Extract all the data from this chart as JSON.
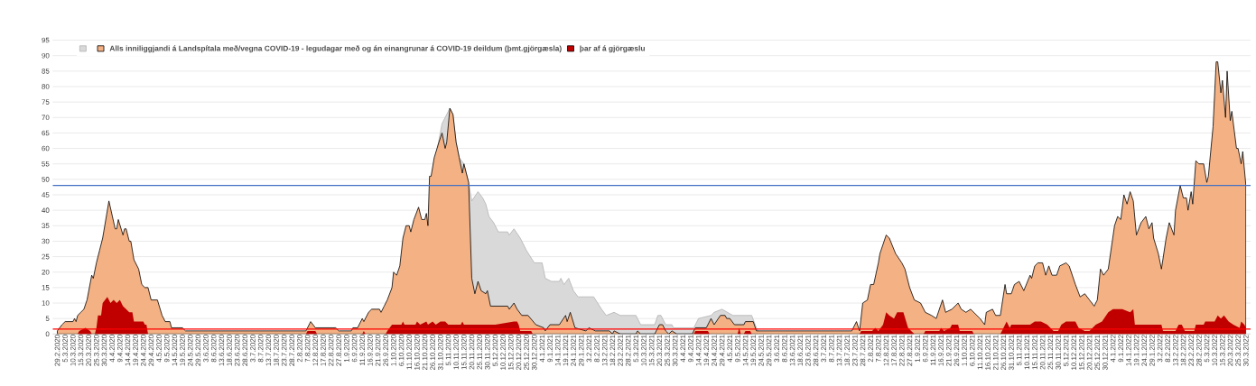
{
  "chart_data": {
    "type": "area",
    "grid": "y",
    "legend": "top left",
    "xlim": [
      "2020-02-26",
      "2022-04-02"
    ],
    "ylim": [
      0,
      95
    ],
    "yticks": [
      0,
      5,
      10,
      15,
      20,
      25,
      30,
      35,
      40,
      45,
      50,
      55,
      60,
      65,
      70,
      75,
      80,
      85,
      90,
      95
    ],
    "xticks": [
      {
        "value": "2020-02-29",
        "label": "29.2.2020"
      },
      {
        "value": "2020-03-05",
        "label": "5.3.2020"
      },
      {
        "value": "2020-03-10",
        "label": "10.3.2020"
      },
      {
        "value": "2020-03-15",
        "label": "15.3.2020"
      },
      {
        "value": "2020-03-20",
        "label": "20.3.2020"
      },
      {
        "value": "2020-03-25",
        "label": "25.3.2020"
      },
      {
        "value": "2020-03-30",
        "label": "30.3.2020"
      },
      {
        "value": "2020-04-04",
        "label": "4.4.2020"
      },
      {
        "value": "2020-04-09",
        "label": "9.4.2020"
      },
      {
        "value": "2020-04-14",
        "label": "14.4.2020"
      },
      {
        "value": "2020-04-19",
        "label": "19.4.2020"
      },
      {
        "value": "2020-04-24",
        "label": "24.4.2020"
      },
      {
        "value": "2020-04-29",
        "label": "29.4.2020"
      },
      {
        "value": "2020-05-04",
        "label": "4.5.2020"
      },
      {
        "value": "2020-05-09",
        "label": "9.5.2020"
      },
      {
        "value": "2020-05-14",
        "label": "14.5.2020"
      },
      {
        "value": "2020-05-19",
        "label": "19.5.2020"
      },
      {
        "value": "2020-05-24",
        "label": "24.5.2020"
      },
      {
        "value": "2020-05-29",
        "label": "29.5.2020"
      },
      {
        "value": "2020-06-03",
        "label": "3.6.2020"
      },
      {
        "value": "2020-06-08",
        "label": "8.6.2020"
      },
      {
        "value": "2020-06-13",
        "label": "13.6.2020"
      },
      {
        "value": "2020-06-18",
        "label": "18.6.2020"
      },
      {
        "value": "2020-06-23",
        "label": "23.6.2020"
      },
      {
        "value": "2020-06-28",
        "label": "28.6.2020"
      },
      {
        "value": "2020-07-03",
        "label": "3.7.2020"
      },
      {
        "value": "2020-07-08",
        "label": "8.7.2020"
      },
      {
        "value": "2020-07-13",
        "label": "13.7.2020"
      },
      {
        "value": "2020-07-18",
        "label": "18.7.2020"
      },
      {
        "value": "2020-07-23",
        "label": "23.7.2020"
      },
      {
        "value": "2020-07-28",
        "label": "28.7.2020"
      },
      {
        "value": "2020-08-02",
        "label": "2.8.2020"
      },
      {
        "value": "2020-08-07",
        "label": "7.8.2020"
      },
      {
        "value": "2020-08-12",
        "label": "12.8.2020"
      },
      {
        "value": "2020-08-17",
        "label": "17.8.2020"
      },
      {
        "value": "2020-08-22",
        "label": "22.8.2020"
      },
      {
        "value": "2020-08-27",
        "label": "27.8.2020"
      },
      {
        "value": "2020-09-01",
        "label": "1.9.2020"
      },
      {
        "value": "2020-09-06",
        "label": "6.9.2020"
      },
      {
        "value": "2020-09-11",
        "label": "11.9.2020"
      },
      {
        "value": "2020-09-16",
        "label": "16.9.2020"
      },
      {
        "value": "2020-09-21",
        "label": "21.9.2020"
      },
      {
        "value": "2020-09-26",
        "label": "26.9.2020"
      },
      {
        "value": "2020-10-01",
        "label": "1.10.2020"
      },
      {
        "value": "2020-10-06",
        "label": "6.10.2020"
      },
      {
        "value": "2020-10-11",
        "label": "11.10.2020"
      },
      {
        "value": "2020-10-16",
        "label": "16.10.2020"
      },
      {
        "value": "2020-10-21",
        "label": "21.10.2020"
      },
      {
        "value": "2020-10-26",
        "label": "26.10.2020"
      },
      {
        "value": "2020-10-31",
        "label": "31.10.2020"
      },
      {
        "value": "2020-11-05",
        "label": "5.11.2020"
      },
      {
        "value": "2020-11-10",
        "label": "10.11.2020"
      },
      {
        "value": "2020-11-15",
        "label": "15.11.2020"
      },
      {
        "value": "2020-11-20",
        "label": "20.11.2020"
      },
      {
        "value": "2020-11-25",
        "label": "25.11.2020"
      },
      {
        "value": "2020-11-30",
        "label": "30.11.2020"
      },
      {
        "value": "2020-12-05",
        "label": "5.12.2020"
      },
      {
        "value": "2020-12-10",
        "label": "10.12.2020"
      },
      {
        "value": "2020-12-15",
        "label": "15.12.2020"
      },
      {
        "value": "2020-12-20",
        "label": "20.12.2020"
      },
      {
        "value": "2020-12-25",
        "label": "25.12.2020"
      },
      {
        "value": "2020-12-30",
        "label": "30.12.2020"
      },
      {
        "value": "2021-01-04",
        "label": "4.1.2021"
      },
      {
        "value": "2021-01-09",
        "label": "9.1.2021"
      },
      {
        "value": "2021-01-14",
        "label": "14.1.2021"
      },
      {
        "value": "2021-01-19",
        "label": "19.1.2021"
      },
      {
        "value": "2021-01-24",
        "label": "24.1.2021"
      },
      {
        "value": "2021-01-29",
        "label": "29.1.2021"
      },
      {
        "value": "2021-02-03",
        "label": "3.2.2021"
      },
      {
        "value": "2021-02-08",
        "label": "8.2.2021"
      },
      {
        "value": "2021-02-13",
        "label": "13.2.2021"
      },
      {
        "value": "2021-02-18",
        "label": "18.2.2021"
      },
      {
        "value": "2021-02-23",
        "label": "23.2.2021"
      },
      {
        "value": "2021-02-28",
        "label": "28.2.2021"
      },
      {
        "value": "2021-03-05",
        "label": "5.3.2021"
      },
      {
        "value": "2021-03-10",
        "label": "10.3.2021"
      },
      {
        "value": "2021-03-15",
        "label": "15.3.2021"
      },
      {
        "value": "2021-03-20",
        "label": "20.3.2021"
      },
      {
        "value": "2021-03-25",
        "label": "25.3.2021"
      },
      {
        "value": "2021-03-30",
        "label": "30.3.2021"
      },
      {
        "value": "2021-04-04",
        "label": "4.4.2021"
      },
      {
        "value": "2021-04-09",
        "label": "9.4.2021"
      },
      {
        "value": "2021-04-14",
        "label": "14.4.2021"
      },
      {
        "value": "2021-04-19",
        "label": "19.4.2021"
      },
      {
        "value": "2021-04-24",
        "label": "24.4.2021"
      },
      {
        "value": "2021-04-29",
        "label": "29.4.2021"
      },
      {
        "value": "2021-05-04",
        "label": "4.5.2021"
      },
      {
        "value": "2021-05-09",
        "label": "9.5.2021"
      },
      {
        "value": "2021-05-14",
        "label": "14.5.2021"
      },
      {
        "value": "2021-05-19",
        "label": "19.5.2021"
      },
      {
        "value": "2021-05-24",
        "label": "24.5.2021"
      },
      {
        "value": "2021-05-29",
        "label": "29.5.2021"
      },
      {
        "value": "2021-06-03",
        "label": "3.6.2021"
      },
      {
        "value": "2021-06-08",
        "label": "8.6.2021"
      },
      {
        "value": "2021-06-13",
        "label": "13.6.2021"
      },
      {
        "value": "2021-06-18",
        "label": "18.6.2021"
      },
      {
        "value": "2021-06-23",
        "label": "23.6.2021"
      },
      {
        "value": "2021-06-28",
        "label": "28.6.2021"
      },
      {
        "value": "2021-07-03",
        "label": "3.7.2021"
      },
      {
        "value": "2021-07-08",
        "label": "8.7.2021"
      },
      {
        "value": "2021-07-13",
        "label": "13.7.2021"
      },
      {
        "value": "2021-07-18",
        "label": "18.7.2021"
      },
      {
        "value": "2021-07-23",
        "label": "23.7.2021"
      },
      {
        "value": "2021-07-28",
        "label": "28.7.2021"
      },
      {
        "value": "2021-08-02",
        "label": "2.8.2021"
      },
      {
        "value": "2021-08-07",
        "label": "7.8.2021"
      },
      {
        "value": "2021-08-12",
        "label": "12.8.2021"
      },
      {
        "value": "2021-08-17",
        "label": "17.8.2021"
      },
      {
        "value": "2021-08-22",
        "label": "22.8.2021"
      },
      {
        "value": "2021-08-27",
        "label": "27.8.2021"
      },
      {
        "value": "2021-09-01",
        "label": "1.9.2021"
      },
      {
        "value": "2021-09-06",
        "label": "6.9.2021"
      },
      {
        "value": "2021-09-11",
        "label": "11.9.2021"
      },
      {
        "value": "2021-09-16",
        "label": "16.9.2021"
      },
      {
        "value": "2021-09-21",
        "label": "21.9.2021"
      },
      {
        "value": "2021-09-26",
        "label": "26.9.2021"
      },
      {
        "value": "2021-10-01",
        "label": "1.10.2021"
      },
      {
        "value": "2021-10-06",
        "label": "6.10.2021"
      },
      {
        "value": "2021-10-11",
        "label": "11.10.2021"
      },
      {
        "value": "2021-10-16",
        "label": "16.10.2021"
      },
      {
        "value": "2021-10-21",
        "label": "21.10.2021"
      },
      {
        "value": "2021-10-26",
        "label": "26.10.2021"
      },
      {
        "value": "2021-10-31",
        "label": "31.10.2021"
      },
      {
        "value": "2021-11-05",
        "label": "5.11.2021"
      },
      {
        "value": "2021-11-10",
        "label": "10.11.2021"
      },
      {
        "value": "2021-11-15",
        "label": "15.11.2021"
      },
      {
        "value": "2021-11-20",
        "label": "20.11.2021"
      },
      {
        "value": "2021-11-25",
        "label": "25.11.2021"
      },
      {
        "value": "2021-11-30",
        "label": "30.11.2021"
      },
      {
        "value": "2021-12-05",
        "label": "5.12.2021"
      },
      {
        "value": "2021-12-10",
        "label": "10.12.2021"
      },
      {
        "value": "2021-12-15",
        "label": "15.12.2021"
      },
      {
        "value": "2021-12-20",
        "label": "20.12.2021"
      },
      {
        "value": "2021-12-25",
        "label": "25.12.2021"
      },
      {
        "value": "2021-12-30",
        "label": "30.12.2021"
      },
      {
        "value": "2022-01-04",
        "label": "4.1.2022"
      },
      {
        "value": "2022-01-09",
        "label": "9.1.2022"
      },
      {
        "value": "2022-01-14",
        "label": "14.1.2022"
      },
      {
        "value": "2022-01-19",
        "label": "19.1.2022"
      },
      {
        "value": "2022-01-24",
        "label": "24.1.2022"
      },
      {
        "value": "2022-01-29",
        "label": "29.1.2022"
      },
      {
        "value": "2022-02-03",
        "label": "3.2.2022"
      },
      {
        "value": "2022-02-08",
        "label": "8.2.2022"
      },
      {
        "value": "2022-02-13",
        "label": "13.2.2022"
      },
      {
        "value": "2022-02-18",
        "label": "18.2.2022"
      },
      {
        "value": "2022-02-23",
        "label": "23.2.2022"
      },
      {
        "value": "2022-02-28",
        "label": "28.2.2022"
      },
      {
        "value": "2022-03-05",
        "label": "5.3.2022"
      },
      {
        "value": "2022-03-10",
        "label": "10.3.2022"
      },
      {
        "value": "2022-03-15",
        "label": "15.3.2022"
      },
      {
        "value": "2022-03-20",
        "label": "20.3.2022"
      },
      {
        "value": "2022-03-25",
        "label": "25.3.2022"
      },
      {
        "value": "2022-03-30",
        "label": "30.3.2022"
      }
    ],
    "series": [
      {
        "color": "#d9d9d9",
        "x": [
          "2020-10-29",
          "2020-11-01",
          "2020-11-03",
          "2020-11-06",
          "2020-11-08",
          "2020-11-10",
          "2020-11-12",
          "2020-11-14",
          "2020-11-15",
          "2020-11-18",
          "2020-11-20",
          "2020-11-24",
          "2020-11-27",
          "2020-11-29",
          "2020-12-01",
          "2020-12-04",
          "2020-12-07",
          "2020-12-13",
          "2020-12-14",
          "2020-12-17",
          "2020-12-21",
          "2020-12-25",
          "2020-12-30",
          "2021-01-04",
          "2021-01-06",
          "2021-01-10",
          "2021-01-15",
          "2021-01-16",
          "2021-01-18",
          "2021-01-21",
          "2021-01-24",
          "2021-01-27",
          "2021-02-06",
          "2021-02-11",
          "2021-02-14",
          "2021-02-19",
          "2021-02-23",
          "2021-03-05",
          "2021-03-08",
          "2021-03-17",
          "2021-03-19",
          "2021-03-21",
          "2021-03-24",
          "2021-03-28",
          "2021-03-29",
          "2021-04-11",
          "2021-04-14",
          "2021-04-22",
          "2021-04-24",
          "2021-04-29",
          "2021-05-06",
          "2021-05-13",
          "2021-05-18",
          "2021-05-21",
          "2021-05-22"
        ],
        "values": [
          60,
          68,
          null,
          73,
          71,
          62,
          57,
          null,
          55,
          49,
          43,
          46,
          44,
          42,
          38,
          36,
          33,
          33,
          32,
          34,
          31,
          27,
          23,
          23,
          18,
          17,
          17,
          18,
          16,
          18,
          14,
          12,
          12,
          8,
          6,
          7,
          6,
          6,
          3,
          3,
          6,
          6,
          3,
          3,
          2,
          2,
          5,
          6,
          7,
          8,
          6,
          6,
          6,
          2,
          1
        ]
      },
      {
        "name": "Alls inniliggjandi á Landspítala með/vegna COVID-19 - legudagar með og án einangrunar á COVID-19 deildum (þmt.gjörgæsla)",
        "color": "#f4b183",
        "x": [
          "2020-02-29",
          "2020-03-03",
          "2020-03-05",
          "2020-03-10",
          "2020-03-11",
          "2020-03-12",
          "2020-03-13",
          "2020-03-15",
          "2020-03-17",
          "2020-03-19",
          "2020-03-22",
          "2020-03-23",
          "2020-03-25",
          "2020-03-27",
          "2020-03-29",
          "2020-04-02",
          "2020-04-06",
          "2020-04-07",
          "2020-04-08",
          "2020-04-11",
          "2020-04-12",
          "2020-04-13",
          "2020-04-15",
          "2020-04-16",
          "2020-04-18",
          "2020-04-21",
          "2020-04-23",
          "2020-04-25",
          "2020-04-27",
          "2020-04-29",
          "2020-05-03",
          "2020-05-06",
          "2020-05-08",
          "2020-05-11",
          "2020-05-12",
          "2020-05-19",
          "2020-05-21",
          "2020-08-06",
          "2020-08-09",
          "2020-08-12",
          "2020-08-25",
          "2020-08-27",
          "2020-09-04",
          "2020-09-05",
          "2020-09-08",
          "2020-09-11",
          "2020-09-12",
          "2020-09-15",
          "2020-09-17",
          "2020-09-22",
          "2020-09-23",
          "2020-09-25",
          "2020-09-27",
          "2020-09-30",
          "2020-10-01",
          "2020-10-03",
          "2020-10-05",
          "2020-10-07",
          "2020-10-09",
          "2020-10-11",
          "2020-10-12",
          "2020-10-14",
          "2020-10-17",
          "2020-10-19",
          "2020-10-21",
          "2020-10-22",
          "2020-10-23",
          "2020-10-24",
          "2020-10-25",
          "2020-10-27",
          "2020-10-30",
          "2020-11-01",
          "2020-11-03",
          "2020-11-04",
          "2020-11-06",
          "2020-11-08",
          "2020-11-10",
          "2020-11-12",
          "2020-11-14",
          "2020-11-15",
          "2020-11-18",
          "2020-11-20",
          "2020-11-22",
          "2020-11-24",
          "2020-11-26",
          "2020-11-29",
          "2020-11-30",
          "2020-12-02",
          "2020-12-13",
          "2020-12-14",
          "2020-12-17",
          "2020-12-19",
          "2020-12-22",
          "2020-12-26",
          "2020-12-31",
          "2021-01-05",
          "2021-01-06",
          "2021-01-09",
          "2021-01-15",
          "2021-01-19",
          "2021-01-20",
          "2021-01-22",
          "2021-01-25",
          "2021-02-01",
          "2021-02-03",
          "2021-02-07",
          "2021-02-16",
          "2021-02-18",
          "2021-02-19",
          "2021-02-23",
          "2021-03-05",
          "2021-03-06",
          "2021-03-08",
          "2021-03-17",
          "2021-03-20",
          "2021-03-22",
          "2021-03-24",
          "2021-03-26",
          "2021-03-28",
          "2021-03-31",
          "2021-04-10",
          "2021-04-12",
          "2021-04-19",
          "2021-04-22",
          "2021-04-24",
          "2021-04-28",
          "2021-05-01",
          "2021-05-02",
          "2021-05-04",
          "2021-05-07",
          "2021-05-13",
          "2021-05-14",
          "2021-05-19",
          "2021-05-21",
          "2021-07-21",
          "2021-07-24",
          "2021-07-26",
          "2021-07-28",
          "2021-07-31",
          "2021-08-02",
          "2021-08-04",
          "2021-08-07",
          "2021-08-08",
          "2021-08-10",
          "2021-08-12",
          "2021-08-14",
          "2021-08-18",
          "2021-08-22",
          "2021-08-24",
          "2021-08-27",
          "2021-08-30",
          "2021-09-03",
          "2021-09-06",
          "2021-09-10",
          "2021-09-13",
          "2021-09-17",
          "2021-09-19",
          "2021-09-23",
          "2021-09-27",
          "2021-09-29",
          "2021-10-02",
          "2021-10-05",
          "2021-10-11",
          "2021-10-14",
          "2021-10-15",
          "2021-10-19",
          "2021-10-21",
          "2021-10-24",
          "2021-10-27",
          "2021-10-28",
          "2021-10-31",
          "2021-11-02",
          "2021-11-05",
          "2021-11-08",
          "2021-11-12",
          "2021-11-13",
          "2021-11-15",
          "2021-11-17",
          "2021-11-20",
          "2021-11-22",
          "2021-11-24",
          "2021-11-26",
          "2021-11-29",
          "2021-12-01",
          "2021-12-05",
          "2021-12-07",
          "2021-12-11",
          "2021-12-14",
          "2021-12-17",
          "2021-12-20",
          "2021-12-23",
          "2021-12-25",
          "2021-12-27",
          "2021-12-29",
          "2022-01-01",
          "2022-01-05",
          "2022-01-07",
          "2022-01-09",
          "2022-01-11",
          "2022-01-13",
          "2022-01-15",
          "2022-01-17",
          "2022-01-19",
          "2022-01-22",
          "2022-01-25",
          "2022-01-27",
          "2022-01-29",
          "2022-01-30",
          "2022-02-02",
          "2022-02-04",
          "2022-02-07",
          "2022-02-09",
          "2022-02-12",
          "2022-02-13",
          "2022-02-16",
          "2022-02-18",
          "2022-02-20",
          "2022-02-21",
          "2022-02-23",
          "2022-02-24",
          "2022-02-26",
          "2022-02-28",
          "2022-03-03",
          "2022-03-05",
          "2022-03-06",
          "2022-03-09",
          "2022-03-11",
          "2022-03-12",
          "2022-03-14",
          "2022-03-15",
          "2022-03-17",
          "2022-03-18",
          "2022-03-20",
          "2022-03-21",
          "2022-03-24",
          "2022-03-25",
          "2022-03-27",
          "2022-03-28",
          "2022-03-30"
        ],
        "values": [
          1,
          3,
          4,
          4,
          5,
          4,
          6,
          7,
          8,
          11,
          19,
          18,
          23,
          27,
          31,
          43,
          34,
          34,
          37,
          32,
          34,
          34,
          30,
          30,
          24,
          21,
          16,
          15,
          15,
          11,
          11,
          6,
          4,
          4,
          2,
          2,
          1,
          1,
          4,
          2,
          2,
          1,
          1,
          2,
          2,
          5,
          4,
          7,
          8,
          8,
          7,
          9,
          11,
          15,
          20,
          19,
          22,
          31,
          35,
          35,
          33,
          37,
          41,
          37,
          37,
          39,
          35,
          51,
          51,
          57,
          62,
          65,
          60,
          62,
          73,
          71,
          62,
          57,
          52,
          55,
          49,
          18,
          13,
          17,
          14,
          13,
          14,
          9,
          9,
          8,
          10,
          8,
          6,
          6,
          3,
          2,
          1,
          3,
          3,
          6,
          4,
          7,
          2,
          1,
          2,
          1,
          1,
          0,
          1,
          0,
          0,
          1,
          0,
          0,
          3,
          3,
          1,
          0,
          1,
          0,
          0,
          2,
          2,
          5,
          3,
          6,
          6,
          5,
          5,
          3,
          3,
          4,
          4,
          1,
          1,
          4,
          1,
          10,
          11,
          16,
          16,
          23,
          26,
          29,
          32,
          31,
          26,
          23,
          21,
          15,
          11,
          10,
          7,
          6,
          5,
          11,
          7,
          8,
          10,
          8,
          7,
          8,
          5,
          3,
          7,
          8,
          6,
          6,
          16,
          13,
          13,
          16,
          17,
          14,
          19,
          18,
          22,
          23,
          23,
          19,
          22,
          19,
          19,
          22,
          23,
          22,
          16,
          12,
          13,
          11,
          9,
          11,
          21,
          19,
          21,
          35,
          38,
          37,
          45,
          42,
          46,
          43,
          32,
          36,
          38,
          34,
          36,
          31,
          26,
          21,
          31,
          36,
          32,
          40,
          48,
          44,
          44,
          40,
          46,
          42,
          56,
          55,
          55,
          49,
          51,
          67,
          88,
          88,
          78,
          82,
          70,
          85,
          69,
          72,
          60,
          60,
          55,
          59,
          48
        ]
      },
      {
        "name": "þar af á gjörgæslu",
        "color": "#c00000",
        "x": [
          "2020-03-13",
          "2020-03-14",
          "2020-03-18",
          "2020-03-21",
          "2020-03-22",
          "2020-03-24",
          "2020-03-25",
          "2020-03-26",
          "2020-03-28",
          "2020-03-29",
          "2020-04-01",
          "2020-04-03",
          "2020-04-05",
          "2020-04-07",
          "2020-04-09",
          "2020-04-11",
          "2020-04-13",
          "2020-04-15",
          "2020-04-17",
          "2020-04-18",
          "2020-04-24",
          "2020-04-25",
          "2020-04-26",
          "2020-04-27",
          "2020-08-06",
          "2020-08-07",
          "2020-08-12",
          "2020-08-13",
          "2020-09-11",
          "2020-09-12",
          "2020-09-13",
          "2020-09-26",
          "2020-09-27",
          "2020-09-30",
          "2020-10-06",
          "2020-10-07",
          "2020-10-08",
          "2020-10-15",
          "2020-10-16",
          "2020-10-18",
          "2020-10-22",
          "2020-10-23",
          "2020-10-26",
          "2020-10-28",
          "2020-10-31",
          "2020-11-03",
          "2020-11-05",
          "2020-11-13",
          "2020-11-14",
          "2020-11-15",
          "2020-11-30",
          "2020-12-05",
          "2020-12-17",
          "2020-12-19",
          "2020-12-20",
          "2020-12-21",
          "2020-12-28",
          "2020-12-29",
          "2021-04-11",
          "2021-04-12",
          "2021-04-20",
          "2021-04-21",
          "2021-05-09",
          "2021-05-10",
          "2021-05-11",
          "2021-05-13",
          "2021-05-14",
          "2021-05-17",
          "2021-05-18",
          "2021-07-26",
          "2021-07-27",
          "2021-08-03",
          "2021-08-05",
          "2021-08-07",
          "2021-08-10",
          "2021-08-12",
          "2021-08-14",
          "2021-08-17",
          "2021-08-19",
          "2021-08-23",
          "2021-08-26",
          "2021-08-28",
          "2021-08-30",
          "2021-09-05",
          "2021-09-06",
          "2021-09-15",
          "2021-09-16",
          "2021-09-18",
          "2021-09-22",
          "2021-09-23",
          "2021-09-27",
          "2021-09-28",
          "2021-10-06",
          "2021-10-07",
          "2021-10-24",
          "2021-10-25",
          "2021-10-28",
          "2021-10-30",
          "2021-10-31",
          "2021-11-12",
          "2021-11-15",
          "2021-11-19",
          "2021-11-23",
          "2021-11-27",
          "2021-11-30",
          "2021-12-02",
          "2021-12-05",
          "2021-12-11",
          "2021-12-13",
          "2021-12-17",
          "2021-12-19",
          "2021-12-20",
          "2021-12-24",
          "2021-12-28",
          "2022-01-01",
          "2022-01-04",
          "2022-01-10",
          "2022-01-15",
          "2022-01-17",
          "2022-01-18",
          "2022-02-04",
          "2022-02-05",
          "2022-02-13",
          "2022-02-15",
          "2022-02-17",
          "2022-02-19",
          "2022-02-25",
          "2022-02-26",
          "2022-03-03",
          "2022-03-04",
          "2022-03-10",
          "2022-03-12",
          "2022-03-14",
          "2022-03-16",
          "2022-03-19",
          "2022-03-22",
          "2022-03-26",
          "2022-03-27",
          "2022-03-29",
          "2022-03-30"
        ],
        "values": [
          0,
          1,
          2,
          1,
          0,
          0,
          2,
          6,
          6,
          10,
          12,
          10,
          11,
          10,
          11,
          9,
          8,
          7,
          7,
          4,
          4,
          3,
          3,
          0,
          0,
          1,
          1,
          0,
          0,
          1,
          0,
          0,
          1,
          3,
          3,
          4,
          3,
          3,
          4,
          3,
          4,
          3,
          4,
          3,
          4,
          4,
          3,
          3,
          4,
          3,
          3,
          3,
          4,
          4,
          3,
          1,
          1,
          0,
          0,
          1,
          1,
          0,
          0,
          2,
          0,
          0,
          1,
          1,
          0,
          0,
          1,
          1,
          2,
          1,
          3,
          7,
          6,
          5,
          7,
          7,
          2,
          1,
          0,
          0,
          1,
          1,
          2,
          1,
          2,
          3,
          3,
          1,
          1,
          0,
          0,
          1,
          4,
          2,
          3,
          3,
          4,
          4,
          3,
          1,
          1,
          3,
          4,
          4,
          2,
          1,
          1,
          1,
          3,
          4,
          7,
          8,
          8,
          7,
          8,
          3,
          3,
          1,
          1,
          3,
          3,
          1,
          1,
          3,
          3,
          4,
          4,
          6,
          5,
          6,
          4,
          3,
          2,
          4,
          3,
          2
        ]
      }
    ],
    "ref_lines": [
      {
        "axis": "y",
        "value": 48,
        "color": "#4472c4"
      },
      {
        "axis": "y",
        "value": 1.6,
        "color": "#ff0000"
      }
    ]
  }
}
